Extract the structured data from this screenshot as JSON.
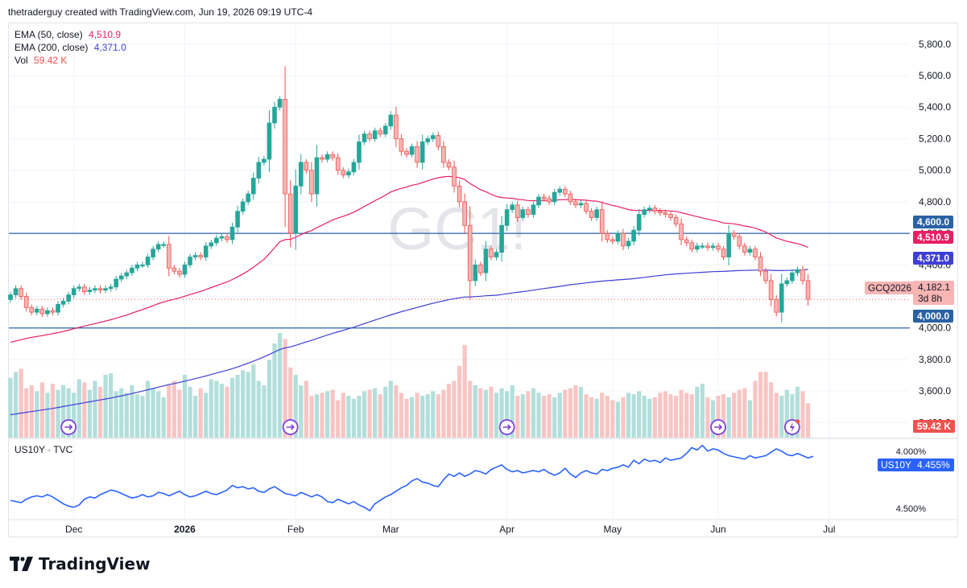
{
  "header": {
    "text": "thetraderguy created with TradingView.com, Jun 19, 2026 09:19 UTC-4"
  },
  "brand": {
    "name": "TradingView"
  },
  "watermark": {
    "symbol": "GC1!"
  },
  "legend": {
    "ema50_label": "EMA (50, close)",
    "ema50_value": "4,510.9",
    "ema200_label": "EMA (200, close)",
    "ema200_value": "4,371.0",
    "vol_label": "Vol",
    "vol_value": "59.42 K"
  },
  "sub_legend": {
    "label": "US10Y · TVC"
  },
  "price_axis": {
    "ticks": [
      "5,800.0",
      "5,600.0",
      "5,400.0",
      "5,200.0",
      "5,000.0",
      "4,800.0",
      "4,600.0",
      "4,400.0",
      "4,200.0",
      "4,000.0",
      "3,800.0",
      "3,600.0",
      "3,400.0"
    ]
  },
  "yield_axis": {
    "ticks": [
      "4.500%",
      "4.000%"
    ]
  },
  "time_axis": {
    "ticks": [
      "Dec",
      "2026",
      "Feb",
      "Mar",
      "Apr",
      "May",
      "Jun",
      "Jul"
    ]
  },
  "tags": {
    "line_upper": "4,600.0",
    "ema50": "4,510.9",
    "ema200": "4,371.0",
    "line_lower": "4,000.0",
    "last_symbol": "GCQ2026",
    "last_price": "4,182.1",
    "countdown": "3d 8h",
    "vol": "59.42 K",
    "us10y_symbol": "US10Y",
    "us10y_value": "4.455%"
  },
  "colors": {
    "up": "#26a69a",
    "down": "#ef5350",
    "vol_up": "#b2dfdb",
    "vol_down": "#f7c5c4",
    "ema50": "#e91e63",
    "ema200": "#3f3fd6",
    "hline": "#2962a5",
    "us10y": "#2962ff",
    "event": "#7e3fd6"
  },
  "chart_data": [
    {
      "type": "candlestick",
      "title": "GC1!",
      "ylim": [
        3300,
        5850
      ],
      "yticks": [
        3400,
        3600,
        3800,
        4000,
        4200,
        4400,
        4600,
        4800,
        5000,
        5200,
        5400,
        5600,
        5800
      ],
      "xtick_labels": [
        "Dec",
        "2026",
        "Feb",
        "Mar",
        "Apr",
        "May",
        "Jun",
        "Jul"
      ],
      "xtick_bars": [
        12,
        33,
        54,
        72,
        94,
        114,
        134,
        155
      ],
      "hlines": [
        4600,
        4000
      ],
      "last_price": 4182.1,
      "ohlc_close": [
        4210,
        4250,
        4200,
        4130,
        4100,
        4120,
        4090,
        4110,
        4100,
        4150,
        4170,
        4210,
        4250,
        4260,
        4230,
        4240,
        4250,
        4240,
        4250,
        4260,
        4310,
        4330,
        4350,
        4380,
        4400,
        4400,
        4450,
        4500,
        4530,
        4530,
        4380,
        4360,
        4340,
        4400,
        4450,
        4460,
        4450,
        4520,
        4540,
        4570,
        4580,
        4560,
        4640,
        4740,
        4800,
        4850,
        4950,
        5050,
        5070,
        5300,
        5400,
        5450,
        4850,
        4600,
        4900,
        5050,
        5000,
        4850,
        5080,
        5070,
        5100,
        5080,
        5000,
        4970,
        4990,
        5050,
        5180,
        5230,
        5200,
        5250,
        5230,
        5280,
        5350,
        5200,
        5120,
        5100,
        5150,
        5050,
        5180,
        5200,
        5220,
        5150,
        5050,
        5020,
        4900,
        4800,
        4650,
        4300,
        4400,
        4350,
        4500,
        4450,
        4480,
        4650,
        4750,
        4780,
        4700,
        4750,
        4720,
        4780,
        4830,
        4820,
        4800,
        4860,
        4880,
        4850,
        4800,
        4780,
        4790,
        4740,
        4700,
        4750,
        4600,
        4560,
        4550,
        4600,
        4520,
        4550,
        4620,
        4720,
        4750,
        4760,
        4740,
        4730,
        4720,
        4700,
        4660,
        4560,
        4540,
        4500,
        4520,
        4520,
        4510,
        4520,
        4500,
        4450,
        4600,
        4580,
        4520,
        4480,
        4500,
        4450,
        4360,
        4300,
        4180,
        4100,
        4280,
        4300,
        4350,
        4370,
        4300,
        4182
      ],
      "ema50": [
        3910,
        3918,
        3926,
        3934,
        3940,
        3946,
        3952,
        3958,
        3964,
        3970,
        3978,
        3986,
        3995,
        4004,
        4012,
        4020,
        4028,
        4036,
        4044,
        4052,
        4062,
        4072,
        4082,
        4094,
        4106,
        4117,
        4129,
        4141,
        4154,
        4165,
        4174,
        4183,
        4191,
        4201,
        4212,
        4222,
        4232,
        4244,
        4256,
        4268,
        4280,
        4292,
        4307,
        4324,
        4342,
        4362,
        4385,
        4410,
        4436,
        4470,
        4508,
        4547,
        4560,
        4562,
        4575,
        4592,
        4607,
        4617,
        4636,
        4652,
        4669,
        4685,
        4697,
        4708,
        4720,
        4734,
        4752,
        4771,
        4788,
        4807,
        4824,
        4842,
        4862,
        4875,
        4885,
        4894,
        4905,
        4911,
        4922,
        4933,
        4944,
        4953,
        4958,
        4961,
        4959,
        4953,
        4941,
        4916,
        4897,
        4876,
        4864,
        4848,
        4834,
        4827,
        4824,
        4822,
        4816,
        4813,
        4808,
        4807,
        4808,
        4808,
        4808,
        4810,
        4813,
        4814,
        4814,
        4813,
        4812,
        4810,
        4806,
        4804,
        4796,
        4786,
        4777,
        4770,
        4760,
        4751,
        4746,
        4745,
        4745,
        4746,
        4746,
        4745,
        4744,
        4742,
        4739,
        4731,
        4723,
        4714,
        4706,
        4698,
        4691,
        4683,
        4676,
        4666,
        4663,
        4660,
        4654,
        4647,
        4641,
        4633,
        4621,
        4608,
        4590,
        4571,
        4560,
        4550,
        4542,
        4535,
        4525,
        4510.9
      ],
      "ema200": [
        3450,
        3455,
        3460,
        3465,
        3470,
        3475,
        3480,
        3485,
        3490,
        3496,
        3502,
        3508,
        3514,
        3520,
        3526,
        3532,
        3538,
        3544,
        3550,
        3556,
        3563,
        3570,
        3577,
        3584,
        3592,
        3600,
        3608,
        3616,
        3625,
        3633,
        3641,
        3648,
        3655,
        3663,
        3671,
        3679,
        3687,
        3696,
        3705,
        3714,
        3723,
        3732,
        3742,
        3753,
        3765,
        3777,
        3790,
        3803,
        3817,
        3832,
        3848,
        3864,
        3874,
        3880,
        3890,
        3901,
        3912,
        3921,
        3933,
        3944,
        3955,
        3966,
        3976,
        3985,
        3995,
        4005,
        4016,
        4028,
        4039,
        4050,
        4061,
        4072,
        4083,
        4093,
        4103,
        4112,
        4121,
        4130,
        4139,
        4148,
        4157,
        4165,
        4172,
        4179,
        4186,
        4191,
        4196,
        4197,
        4199,
        4201,
        4204,
        4206,
        4208,
        4212,
        4217,
        4222,
        4226,
        4231,
        4235,
        4240,
        4245,
        4250,
        4254,
        4259,
        4264,
        4269,
        4274,
        4278,
        4282,
        4286,
        4290,
        4294,
        4297,
        4300,
        4302,
        4305,
        4307,
        4310,
        4313,
        4317,
        4321,
        4325,
        4329,
        4333,
        4337,
        4340,
        4343,
        4345,
        4347,
        4349,
        4351,
        4353,
        4355,
        4357,
        4358,
        4359,
        4361,
        4363,
        4364,
        4365,
        4366,
        4367,
        4367,
        4367,
        4366,
        4364,
        4364,
        4365,
        4366,
        4367,
        4368,
        4371.0
      ],
      "volume": [
        40,
        44,
        46,
        33,
        35,
        31,
        37,
        30,
        36,
        32,
        35,
        33,
        30,
        39,
        37,
        32,
        38,
        34,
        42,
        43,
        31,
        33,
        30,
        35,
        29,
        28,
        38,
        33,
        31,
        27,
        35,
        38,
        32,
        42,
        34,
        28,
        33,
        30,
        39,
        38,
        36,
        34,
        40,
        42,
        45,
        44,
        49,
        38,
        35,
        52,
        63,
        70,
        66,
        47,
        42,
        35,
        38,
        28,
        29,
        30,
        31,
        32,
        25,
        30,
        28,
        26,
        28,
        31,
        32,
        33,
        29,
        34,
        38,
        35,
        30,
        26,
        27,
        30,
        28,
        29,
        31,
        29,
        32,
        36,
        38,
        48,
        62,
        38,
        35,
        33,
        32,
        34,
        30,
        33,
        31,
        35,
        28,
        29,
        31,
        33,
        30,
        28,
        29,
        27,
        30,
        32,
        33,
        35,
        34,
        29,
        27,
        26,
        30,
        28,
        25,
        24,
        27,
        30,
        29,
        31,
        28,
        26,
        27,
        30,
        31,
        29,
        28,
        32,
        30,
        29,
        34,
        36,
        27,
        25,
        28,
        29,
        27,
        30,
        32,
        33,
        25,
        38,
        44,
        44,
        37,
        30,
        28,
        32,
        29,
        34,
        31,
        23
      ],
      "events_at_bar": [
        11,
        53,
        94,
        134,
        148
      ]
    },
    {
      "type": "line",
      "title": "US10Y · TVC",
      "ylim": [
        3.93,
        4.59
      ],
      "yticks": [
        4.0,
        4.5
      ],
      "values": [
        4.07,
        4.06,
        4.05,
        4.08,
        4.1,
        4.11,
        4.1,
        4.12,
        4.1,
        4.07,
        4.04,
        4.02,
        4.01,
        4.03,
        4.08,
        4.1,
        4.09,
        4.12,
        4.14,
        4.16,
        4.15,
        4.13,
        4.11,
        4.09,
        4.1,
        4.12,
        4.1,
        4.11,
        4.14,
        4.13,
        4.11,
        4.13,
        4.15,
        4.12,
        4.1,
        4.11,
        4.13,
        4.15,
        4.13,
        4.12,
        4.14,
        4.16,
        4.2,
        4.18,
        4.19,
        4.17,
        4.18,
        4.15,
        4.14,
        4.17,
        4.19,
        4.16,
        4.13,
        4.12,
        4.11,
        4.14,
        4.12,
        4.1,
        4.12,
        4.1,
        4.06,
        4.05,
        4.08,
        4.06,
        4.04,
        4.06,
        4.03,
        4.01,
        3.98,
        4.04,
        4.07,
        4.1,
        4.12,
        4.15,
        4.18,
        4.2,
        4.24,
        4.26,
        4.23,
        4.22,
        4.2,
        4.19,
        4.25,
        4.3,
        4.28,
        4.31,
        4.28,
        4.3,
        4.33,
        4.32,
        4.3,
        4.34,
        4.36,
        4.38,
        4.34,
        4.32,
        4.33,
        4.31,
        4.32,
        4.33,
        4.32,
        4.34,
        4.31,
        4.29,
        4.31,
        4.35,
        4.3,
        4.27,
        4.31,
        4.33,
        4.31,
        4.3,
        4.34,
        4.33,
        4.35,
        4.36,
        4.38,
        4.36,
        4.42,
        4.39,
        4.43,
        4.41,
        4.42,
        4.4,
        4.44,
        4.42,
        4.43,
        4.44,
        4.48,
        4.53,
        4.51,
        4.55,
        4.5,
        4.52,
        4.51,
        4.48,
        4.46,
        4.45,
        4.44,
        4.43,
        4.46,
        4.44,
        4.45,
        4.46,
        4.49,
        4.52,
        4.5,
        4.47,
        4.46,
        4.48,
        4.46,
        4.44,
        4.455
      ]
    }
  ]
}
